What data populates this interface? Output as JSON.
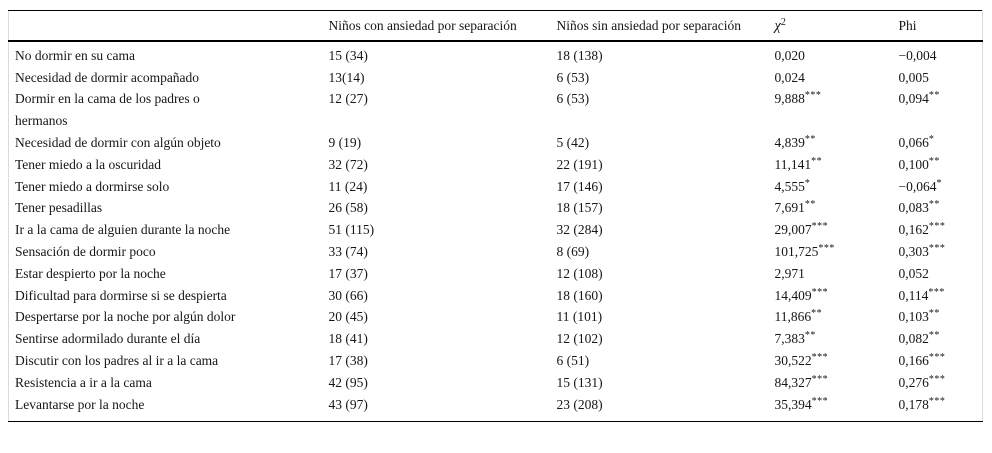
{
  "table": {
    "headers": {
      "behavior": "",
      "group_with": "Niños con ansiedad por separación",
      "group_without": "Niños sin ansiedad por separación",
      "chi_symbol": "χ",
      "chi_sup": "2",
      "phi": "Phi"
    },
    "rows": [
      {
        "label": "No dormir en su cama",
        "with_anxiety": "15 (34)",
        "without_anxiety": "18 (138)",
        "chi2": "0,020",
        "chi2_stars": "",
        "phi": "−0,004",
        "phi_stars": ""
      },
      {
        "label": "Necesidad de dormir acompañado",
        "with_anxiety": "13(14)",
        "without_anxiety": "6 (53)",
        "chi2": "0,024",
        "chi2_stars": "",
        "phi": "0,005",
        "phi_stars": ""
      },
      {
        "label": "Dormir en la cama de los padres o\nhermanos",
        "with_anxiety": "12 (27)",
        "without_anxiety": "6 (53)",
        "chi2": "9,888",
        "chi2_stars": "***",
        "phi": "0,094",
        "phi_stars": "**"
      },
      {
        "label": "Necesidad de dormir con algún objeto",
        "with_anxiety": "9 (19)",
        "without_anxiety": "5 (42)",
        "chi2": "4,839",
        "chi2_stars": "**",
        "phi": "0,066",
        "phi_stars": "*"
      },
      {
        "label": "Tener miedo a la oscuridad",
        "with_anxiety": "32 (72)",
        "without_anxiety": "22 (191)",
        "chi2": "11,141",
        "chi2_stars": "**",
        "phi": "0,100",
        "phi_stars": "**"
      },
      {
        "label": "Tener miedo a dormirse solo",
        "with_anxiety": "11 (24)",
        "without_anxiety": "17 (146)",
        "chi2": "4,555",
        "chi2_stars": "*",
        "phi": "−0,064",
        "phi_stars": "*"
      },
      {
        "label": "Tener pesadillas",
        "with_anxiety": "26 (58)",
        "without_anxiety": "18 (157)",
        "chi2": "7,691",
        "chi2_stars": "**",
        "phi": "0,083",
        "phi_stars": "**"
      },
      {
        "label": "Ir a la cama de alguien durante la noche",
        "with_anxiety": "51 (115)",
        "without_anxiety": "32 (284)",
        "chi2": "29,007",
        "chi2_stars": "***",
        "phi": "0,162",
        "phi_stars": "***"
      },
      {
        "label": "Sensación de dormir poco",
        "with_anxiety": "33 (74)",
        "without_anxiety": "8 (69)",
        "chi2": "101,725",
        "chi2_stars": "***",
        "phi": "0,303",
        "phi_stars": "***"
      },
      {
        "label": "Estar despierto por la noche",
        "with_anxiety": "17 (37)",
        "without_anxiety": "12 (108)",
        "chi2": "2,971",
        "chi2_stars": "",
        "phi": "0,052",
        "phi_stars": ""
      },
      {
        "label": "Dificultad para dormirse si se despierta",
        "with_anxiety": "30 (66)",
        "without_anxiety": "18 (160)",
        "chi2": "14,409",
        "chi2_stars": "***",
        "phi": "0,114",
        "phi_stars": "***"
      },
      {
        "label": "Despertarse por la noche por algún dolor",
        "with_anxiety": "20 (45)",
        "without_anxiety": "11 (101)",
        "chi2": "11,866",
        "chi2_stars": "**",
        "phi": "0,103",
        "phi_stars": "**"
      },
      {
        "label": "Sentirse adormilado durante el día",
        "with_anxiety": "18 (41)",
        "without_anxiety": "12 (102)",
        "chi2": "7,383",
        "chi2_stars": "**",
        "phi": "0,082",
        "phi_stars": "**"
      },
      {
        "label": "Discutir con los padres al ir a la cama",
        "with_anxiety": "17 (38)",
        "without_anxiety": "6 (51)",
        "chi2": "30,522",
        "chi2_stars": "***",
        "phi": "0,166",
        "phi_stars": "***"
      },
      {
        "label": "Resistencia a ir a la cama",
        "with_anxiety": "42 (95)",
        "without_anxiety": "15 (131)",
        "chi2": "84,327",
        "chi2_stars": "***",
        "phi": "0,276",
        "phi_stars": "***"
      },
      {
        "label": "Levantarse por la noche",
        "with_anxiety": "43 (97)",
        "without_anxiety": "23 (208)",
        "chi2": "35,394",
        "chi2_stars": "***",
        "phi": "0,178",
        "phi_stars": "***"
      }
    ]
  }
}
